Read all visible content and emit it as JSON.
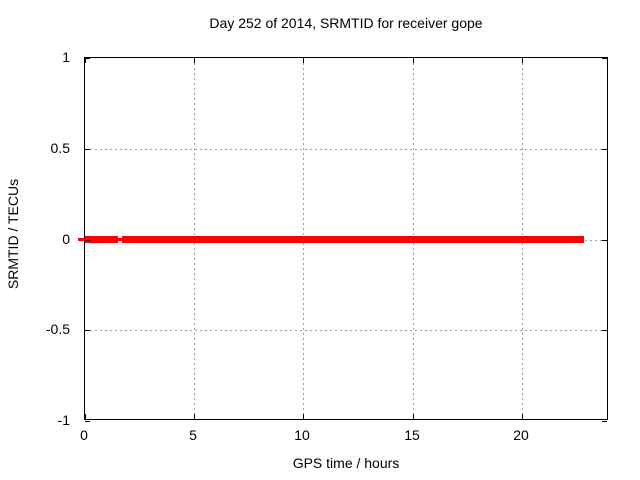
{
  "chart": {
    "title": "Day 252 of 2014, SRMTID for receiver gope",
    "xlabel": "GPS time / hours",
    "ylabel": "SRMTID / TECUs"
  },
  "chart_data": {
    "type": "line",
    "style": "linespoints-dense-markers",
    "title": "Day 252 of 2014, SRMTID for receiver gope",
    "xlabel": "GPS time / hours",
    "ylabel": "SRMTID / TECUs",
    "xlim": [
      0,
      24
    ],
    "ylim": [
      -1,
      1
    ],
    "xticks": [
      0,
      5,
      10,
      15,
      20
    ],
    "xtick_labels": [
      "0",
      "5",
      "10",
      "15",
      "20"
    ],
    "yticks": [
      1,
      0.5,
      0,
      -0.5,
      -1
    ],
    "ytick_labels": [
      "1",
      "0.5",
      "0",
      "-0.5",
      "-1"
    ],
    "grid": true,
    "grid_color": "#a0a0a0",
    "border_color": "#000000",
    "background_color": "#ffffff",
    "legend": "none",
    "series": [
      {
        "name": "SRMTID",
        "color": "#ff0000",
        "y_value": 0,
        "segments_hours": [
          [
            0.0,
            1.49
          ],
          [
            1.7,
            22.84
          ]
        ],
        "gap_hours": [
          1.49,
          1.7
        ],
        "connector_extent_hours": [
          -0.3,
          22.84
        ]
      }
    ]
  }
}
